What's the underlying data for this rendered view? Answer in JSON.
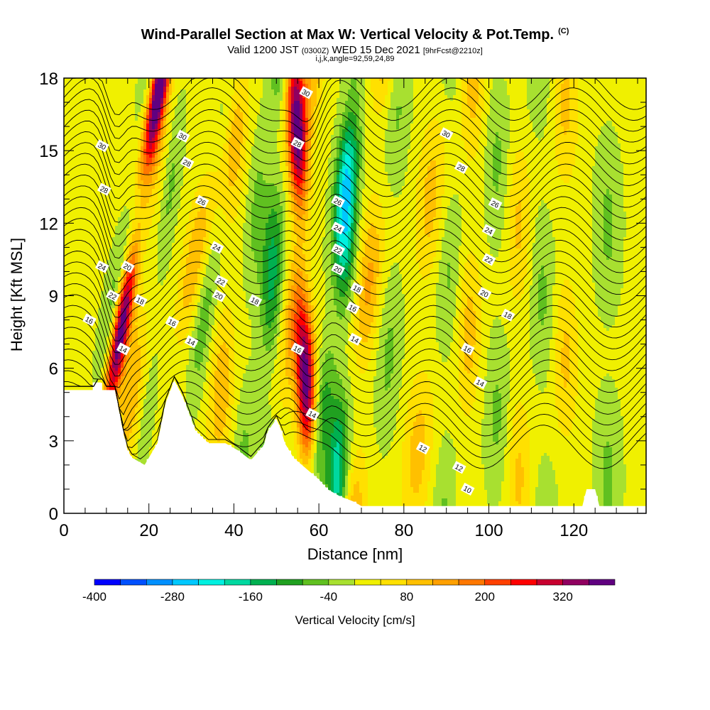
{
  "title": "Wind-Parallel Section at Max W: Vertical Velocity & Pot.Temp.",
  "title_mark": "(C)",
  "subtitle_main": "Valid 1200 JST",
  "subtitle_zulu": "(0300Z)",
  "subtitle_date": "WED 15 Dec 2021",
  "subtitle_fcst": "[9hrFcst@2210z]",
  "params": "i,j,k,angle=92,59,24,89",
  "chart_data": {
    "type": "heatmap",
    "xlabel": "Distance [nm]",
    "ylabel": "Height [Kft MSL]",
    "xlim": [
      0,
      137
    ],
    "ylim": [
      0,
      18
    ],
    "x_ticks": [
      0,
      20,
      40,
      60,
      80,
      100,
      120
    ],
    "y_ticks": [
      0,
      3,
      6,
      9,
      12,
      15,
      18
    ],
    "colorbar": {
      "label": "Vertical Velocity [cm/s]",
      "tick_labels": [
        "-400",
        "-280",
        "-160",
        "-40",
        "80",
        "200",
        "320"
      ],
      "tick_values": [
        -400,
        -280,
        -160,
        -40,
        80,
        200,
        320
      ],
      "levels": [
        -400,
        -360,
        -320,
        -280,
        -240,
        -200,
        -160,
        -120,
        -80,
        -40,
        0,
        40,
        80,
        120,
        160,
        200,
        240,
        280,
        320,
        360
      ],
      "colors": [
        "#0000ff",
        "#0050ff",
        "#0090ff",
        "#00c8ff",
        "#00f0e0",
        "#00d8a0",
        "#00b050",
        "#20a020",
        "#60c020",
        "#a8e030",
        "#f0f000",
        "#ffe000",
        "#ffc000",
        "#ffa000",
        "#ff7800",
        "#ff4000",
        "#ff0000",
        "#c80030",
        "#900060",
        "#600080"
      ]
    },
    "background_w": 10,
    "terrain_kft": [
      [
        0,
        5.1
      ],
      [
        7,
        5.1
      ],
      [
        7,
        5.4
      ],
      [
        9,
        5.4
      ],
      [
        9,
        5.1
      ],
      [
        12,
        5.1
      ],
      [
        13,
        4.2
      ],
      [
        14,
        3.3
      ],
      [
        15,
        2.6
      ],
      [
        16,
        2.3
      ],
      [
        19,
        2.0
      ],
      [
        20,
        2.3
      ],
      [
        22,
        2.9
      ],
      [
        24,
        4.6
      ],
      [
        26,
        5.5
      ],
      [
        28,
        4.8
      ],
      [
        31,
        3.4
      ],
      [
        34,
        2.9
      ],
      [
        38,
        2.9
      ],
      [
        41,
        2.6
      ],
      [
        44,
        2.2
      ],
      [
        47,
        2.8
      ],
      [
        48,
        3.4
      ],
      [
        50,
        3.9
      ],
      [
        51,
        3.5
      ],
      [
        52,
        2.9
      ],
      [
        54,
        2.3
      ],
      [
        56,
        2.0
      ],
      [
        58,
        1.7
      ],
      [
        60,
        1.4
      ],
      [
        62,
        1.0
      ],
      [
        65,
        0.7
      ],
      [
        68,
        0.5
      ],
      [
        70,
        0.3
      ],
      [
        84,
        0.3
      ],
      [
        122,
        0.3
      ],
      [
        123,
        1.0
      ],
      [
        125,
        1.0
      ],
      [
        126,
        0.3
      ],
      [
        137,
        0.3
      ]
    ],
    "w_bands": [
      {
        "x": 11,
        "w": 420,
        "width": 2.0,
        "slope": 0.9
      },
      {
        "x": 9,
        "w": -100,
        "width": 2.5,
        "slope": 0.9
      },
      {
        "x": 16,
        "w": 100,
        "width": 3.0,
        "slope": 0.5
      },
      {
        "x": 20,
        "w": -60,
        "width": 2.0,
        "slope": 0.6
      },
      {
        "x": 26,
        "w": 110,
        "width": 3.0,
        "slope": 0.9
      },
      {
        "x": 31,
        "w": -80,
        "width": 2.5,
        "slope": 0.6
      },
      {
        "x": 37,
        "w": 100,
        "width": 3.0,
        "slope": 0.3
      },
      {
        "x": 43,
        "w": -60,
        "width": 2.5,
        "slope": 0.3
      },
      {
        "x": 48,
        "w": -150,
        "width": 2.5,
        "slope": 0.2
      },
      {
        "x": 52,
        "w": 100,
        "width": 2.5,
        "slope": 0.5
      },
      {
        "x": 57,
        "w": 380,
        "width": 2.3,
        "slope": -0.2
      },
      {
        "x": 61,
        "w": -120,
        "width": 2.5,
        "slope": 0.6
      },
      {
        "x": 65,
        "w": -200,
        "width": 2.5,
        "slope": 0.2
      },
      {
        "x": 70,
        "w": 120,
        "width": 3.0,
        "slope": 0.4
      },
      {
        "x": 76,
        "w": -60,
        "width": 3.0,
        "slope": 0.2
      },
      {
        "x": 84,
        "w": 90,
        "width": 3.5,
        "slope": 0.3
      },
      {
        "x": 90,
        "w": -60,
        "width": 3.0,
        "slope": 0.1
      },
      {
        "x": 95,
        "w": 90,
        "width": 3.0,
        "slope": 0.1
      },
      {
        "x": 102,
        "w": -60,
        "width": 3.0,
        "slope": 0.0
      },
      {
        "x": 107,
        "w": 80,
        "width": 3.0,
        "slope": 0.0
      },
      {
        "x": 113,
        "w": -60,
        "width": 3.0,
        "slope": -0.1
      },
      {
        "x": 118,
        "w": 80,
        "width": 3.0,
        "slope": 0.0
      },
      {
        "x": 128,
        "w": -60,
        "width": 3.0,
        "slope": 0.0
      }
    ],
    "theta_contour_labels": [
      {
        "value": "30",
        "x": 9,
        "y": 15.2
      },
      {
        "value": "28",
        "x": 9.5,
        "y": 13.4
      },
      {
        "value": "24",
        "x": 9,
        "y": 10.2
      },
      {
        "value": "22",
        "x": 11.5,
        "y": 9.0
      },
      {
        "value": "20",
        "x": 15,
        "y": 10.2
      },
      {
        "value": "18",
        "x": 18,
        "y": 8.8
      },
      {
        "value": "16",
        "x": 6,
        "y": 8.0
      },
      {
        "value": "14",
        "x": 14,
        "y": 6.8
      },
      {
        "value": "30",
        "x": 28,
        "y": 15.6
      },
      {
        "value": "28",
        "x": 29,
        "y": 14.5
      },
      {
        "value": "26",
        "x": 32.5,
        "y": 12.9
      },
      {
        "value": "24",
        "x": 36,
        "y": 11.0
      },
      {
        "value": "22",
        "x": 37,
        "y": 9.6
      },
      {
        "value": "20",
        "x": 36.5,
        "y": 9.0
      },
      {
        "value": "18",
        "x": 45,
        "y": 8.8
      },
      {
        "value": "16",
        "x": 25.5,
        "y": 7.9
      },
      {
        "value": "14",
        "x": 30,
        "y": 7.1
      },
      {
        "value": "30",
        "x": 57,
        "y": 17.4
      },
      {
        "value": "28",
        "x": 55,
        "y": 15.3
      },
      {
        "value": "26",
        "x": 64.5,
        "y": 12.9
      },
      {
        "value": "24",
        "x": 64.5,
        "y": 11.8
      },
      {
        "value": "22",
        "x": 64.5,
        "y": 10.9
      },
      {
        "value": "20",
        "x": 64.5,
        "y": 10.1
      },
      {
        "value": "18",
        "x": 69,
        "y": 9.3
      },
      {
        "value": "16",
        "x": 68,
        "y": 8.5
      },
      {
        "value": "14",
        "x": 68.5,
        "y": 7.2
      },
      {
        "value": "16",
        "x": 55,
        "y": 6.8
      },
      {
        "value": "14",
        "x": 58.5,
        "y": 4.1
      },
      {
        "value": "30",
        "x": 90,
        "y": 15.7
      },
      {
        "value": "28",
        "x": 93.5,
        "y": 14.3
      },
      {
        "value": "26",
        "x": 101.5,
        "y": 12.8
      },
      {
        "value": "24",
        "x": 100,
        "y": 11.7
      },
      {
        "value": "22",
        "x": 100,
        "y": 10.5
      },
      {
        "value": "20",
        "x": 99,
        "y": 9.1
      },
      {
        "value": "18",
        "x": 104.5,
        "y": 8.2
      },
      {
        "value": "16",
        "x": 95,
        "y": 6.8
      },
      {
        "value": "14",
        "x": 98,
        "y": 5.4
      },
      {
        "value": "12",
        "x": 84.5,
        "y": 2.7
      },
      {
        "value": "12",
        "x": 93,
        "y": 1.9
      },
      {
        "value": "10",
        "x": 95,
        "y": 1.0
      }
    ]
  }
}
